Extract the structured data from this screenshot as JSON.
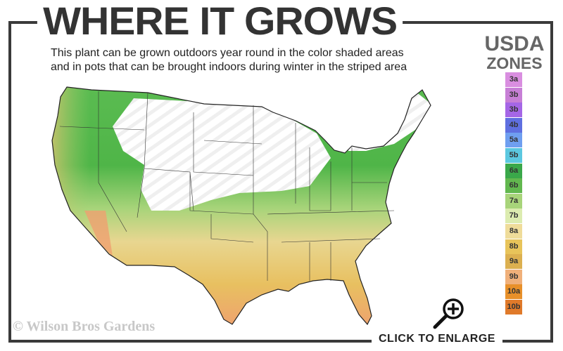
{
  "title": "WHERE IT GROWS",
  "subtitle_line1": "This plant can be grown outdoors year round in the color shaded areas",
  "subtitle_line2": "and in pots that can be brought indoors during winter in the striped area",
  "legend": {
    "title_line1": "USDA",
    "title_line2": "ZONES",
    "zones": [
      {
        "label": "3a",
        "color": "#d98ee0"
      },
      {
        "label": "3b",
        "color": "#c77fd6"
      },
      {
        "label": "3b",
        "color": "#a566e6"
      },
      {
        "label": "4b",
        "color": "#5f6fe0"
      },
      {
        "label": "5a",
        "color": "#6f9ff0"
      },
      {
        "label": "5b",
        "color": "#5cc8e0"
      },
      {
        "label": "6a",
        "color": "#3aa84a"
      },
      {
        "label": "6b",
        "color": "#62b84f"
      },
      {
        "label": "7a",
        "color": "#a8d47a"
      },
      {
        "label": "7b",
        "color": "#dcecb0"
      },
      {
        "label": "8a",
        "color": "#efdc9a"
      },
      {
        "label": "8b",
        "color": "#e8c45a"
      },
      {
        "label": "9a",
        "color": "#dcb050"
      },
      {
        "label": "9b",
        "color": "#f0b07a"
      },
      {
        "label": "10a",
        "color": "#e8902a"
      },
      {
        "label": "10b",
        "color": "#e07a2a"
      }
    ]
  },
  "copyright": "© Wilson Bros Gardens",
  "enlarge_label": "CLICK TO ENLARGE",
  "icons": {
    "enlarge": "magnifier-plus-icon"
  }
}
